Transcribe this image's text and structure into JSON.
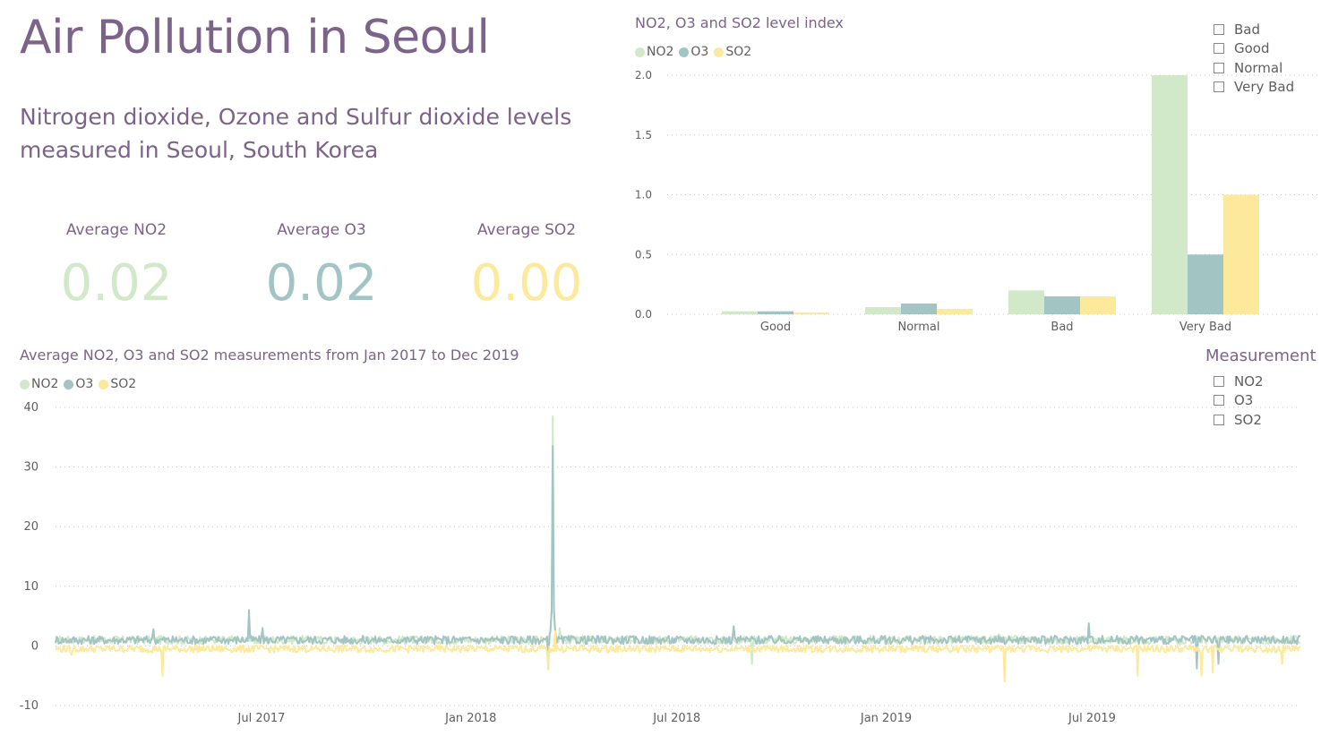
{
  "header": {
    "title": "Air Pollution in Seoul",
    "subtitle": "Nitrogen dioxide, Ozone and Sulfur dioxide levels measured in Seoul, South Korea"
  },
  "colors": {
    "NO2": "#d1e8c9",
    "O3": "#a2c4c3",
    "SO2": "#fde99c",
    "accent": "#7b6389"
  },
  "kpis": [
    {
      "label": "Average NO2",
      "value": "0.02",
      "color": "#d1e8c9"
    },
    {
      "label": "Average O3",
      "value": "0.02",
      "color": "#a2c4c3"
    },
    {
      "label": "Average SO2",
      "value": "0.00",
      "color": "#fde99c"
    }
  ],
  "level_slicer": {
    "items": [
      "Bad",
      "Good",
      "Normal",
      "Very Bad"
    ]
  },
  "measurement_slicer": {
    "title": "Measurement",
    "items": [
      "NO2",
      "O3",
      "SO2"
    ]
  },
  "chart_data": [
    {
      "type": "bar",
      "title": "NO2, O3 and SO2 level index",
      "categories": [
        "Good",
        "Normal",
        "Bad",
        "Very Bad"
      ],
      "series": [
        {
          "name": "NO2",
          "values": [
            0.025,
            0.06,
            0.2,
            2.0
          ]
        },
        {
          "name": "O3",
          "values": [
            0.025,
            0.09,
            0.15,
            0.5
          ]
        },
        {
          "name": "SO2",
          "values": [
            0.015,
            0.045,
            0.15,
            1.0
          ]
        }
      ],
      "ylim": [
        0,
        2.0
      ],
      "yticks": [
        "2.0",
        "1.5",
        "1.0",
        "0.5",
        "0.0"
      ],
      "grid": true,
      "legend": "top-left"
    },
    {
      "type": "line",
      "title": "Average NO2, O3 and SO2 measurements from Jan 2017 to Dec 2019",
      "x_range": [
        "2017-01-01",
        "2019-12-31"
      ],
      "xticks": [
        "Jul 2017",
        "Jan 2018",
        "Jul 2018",
        "Jan 2019",
        "Jul 2019"
      ],
      "ylim": [
        -10,
        40
      ],
      "yticks": [
        "40",
        "30",
        "20",
        "10",
        "0",
        "-10"
      ],
      "grid": true,
      "legend": "top-left",
      "series": [
        {
          "name": "NO2",
          "baseline": 1.0,
          "events": [
            [
              "2017-06-20",
              2.5
            ],
            [
              "2018-03-14",
              38.5
            ],
            [
              "2018-03-20",
              3.0
            ],
            [
              "2018-09-05",
              -3.0
            ],
            [
              "2019-04-10",
              2.0
            ]
          ]
        },
        {
          "name": "O3",
          "baseline": 1.0,
          "events": [
            [
              "2017-03-28",
              2.8
            ],
            [
              "2017-06-20",
              6.0
            ],
            [
              "2017-07-02",
              3.0
            ],
            [
              "2018-03-14",
              33.5
            ],
            [
              "2018-03-10",
              -3.8
            ],
            [
              "2018-08-20",
              3.3
            ],
            [
              "2019-06-28",
              3.8
            ],
            [
              "2019-10-01",
              -3.8
            ],
            [
              "2019-10-20",
              -3.0
            ]
          ]
        },
        {
          "name": "SO2",
          "baseline": -0.5,
          "events": [
            [
              "2017-01-15",
              -1.5
            ],
            [
              "2017-04-05",
              -5.0
            ],
            [
              "2018-03-10",
              -4.0
            ],
            [
              "2018-03-16",
              2.5
            ],
            [
              "2019-04-15",
              -6.0
            ],
            [
              "2019-08-10",
              -5.0
            ],
            [
              "2019-10-05",
              -5.0
            ],
            [
              "2019-10-15",
              -4.5
            ],
            [
              "2019-12-15",
              -3.0
            ]
          ]
        }
      ]
    }
  ]
}
